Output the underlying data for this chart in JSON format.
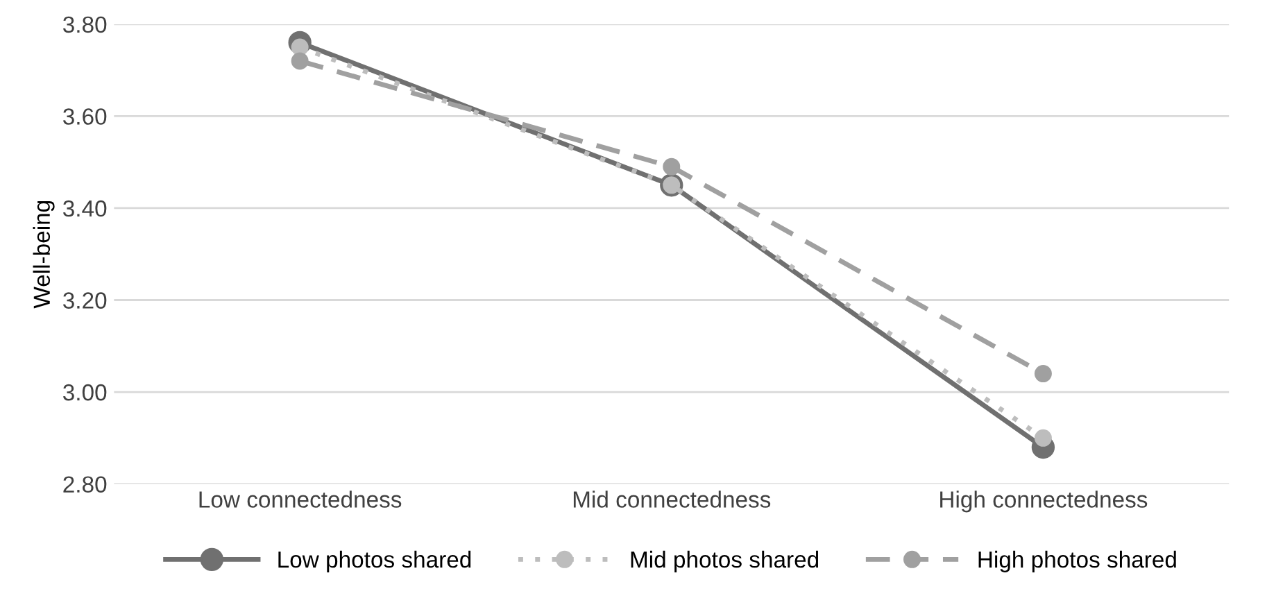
{
  "chart_data": {
    "type": "line",
    "ylabel": "Well-being",
    "categories": [
      "Low connectedness",
      "Mid connectedness",
      "High connectedness"
    ],
    "series": [
      {
        "name": "Low photos shared",
        "color": "#707070",
        "values": [
          3.76,
          3.45,
          2.88
        ],
        "line_style": "solid"
      },
      {
        "name": "Mid photos shared",
        "color": "#bdbdbd",
        "values": [
          3.75,
          3.45,
          2.9
        ],
        "line_style": "dotted"
      },
      {
        "name": "High photos shared",
        "color": "#a0a0a0",
        "values": [
          3.72,
          3.49,
          3.04
        ],
        "line_style": "dashed"
      }
    ],
    "ylim": [
      2.8,
      3.8
    ],
    "yticks": [
      {
        "value": 2.8,
        "label": "2.80"
      },
      {
        "value": 3.0,
        "label": "3.00"
      },
      {
        "value": 3.2,
        "label": "3.20"
      },
      {
        "value": 3.4,
        "label": "3.40"
      },
      {
        "value": 3.6,
        "label": "3.60"
      },
      {
        "value": 3.8,
        "label": "3.80"
      }
    ],
    "grid": "y",
    "legend": "bottom",
    "marker": "circle"
  }
}
